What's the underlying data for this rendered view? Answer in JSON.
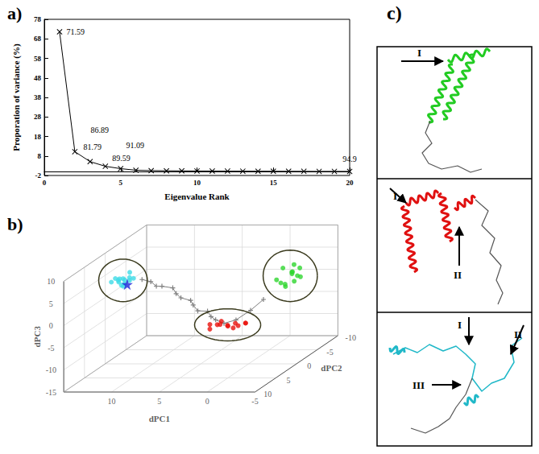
{
  "chart_data": [
    {
      "type": "line",
      "title": "a)",
      "xlabel": "Eigenvalue Rank",
      "ylabel": "Proporation of variance (%)",
      "x": [
        1,
        2,
        3,
        4,
        5,
        6,
        7,
        8,
        9,
        10,
        11,
        12,
        13,
        14,
        15,
        16,
        17,
        18,
        19,
        20
      ],
      "values": [
        71.59,
        10.2,
        5.1,
        2.7,
        1.5,
        0.7,
        0.5,
        0.4,
        0.35,
        0.3,
        0.25,
        0.22,
        0.2,
        0.18,
        0.16,
        0.14,
        0.12,
        0.1,
        0.1,
        0.09
      ],
      "annotations": [
        {
          "x": 1,
          "text": "71.59"
        },
        {
          "x": 2,
          "text": "81.79"
        },
        {
          "x": 3,
          "text": "86.89"
        },
        {
          "x": 4,
          "text": "89.59"
        },
        {
          "x": 5,
          "text": "91.09"
        },
        {
          "x": 20,
          "text": "94.9"
        }
      ],
      "color": "#000000",
      "marker": "x",
      "xlim": [
        0,
        20
      ],
      "xticks": [
        0,
        5,
        10,
        15,
        20
      ],
      "ylim": [
        -2,
        78
      ],
      "yticks": [
        -2,
        8,
        18,
        28,
        38,
        48,
        58,
        68,
        78
      ],
      "grid": false
    },
    {
      "type": "scatter3d",
      "title": "b)",
      "xlabel": "dPC1",
      "ylabel": "dPC2",
      "zlabel": "dPC3",
      "xlim": [
        -5,
        15
      ],
      "xticks": [
        -5,
        0,
        5,
        10
      ],
      "ylim": [
        -10,
        10
      ],
      "yticks": [
        -10,
        -5,
        0,
        5,
        10
      ],
      "zlim": [
        -15,
        10
      ],
      "zticks": [
        -15,
        -10,
        -5,
        0,
        5,
        10
      ],
      "grid": true,
      "series": [
        {
          "type": "line",
          "color": "#7f7f7f",
          "marker": "cross",
          "x": [
            10.5,
            9.8,
            9.0,
            8.2,
            7.5,
            6.8,
            6.0,
            5.2,
            4.5,
            3.8,
            3.0,
            2.2,
            1.5,
            0.5,
            -0.5,
            -1.5,
            -2.2
          ],
          "y": [
            1.5,
            1.0,
            1.5,
            2.0,
            1.0,
            1.8,
            2.5,
            2.0,
            3.0,
            3.5,
            3.0,
            4.0,
            4.5,
            4.8,
            4.2,
            3.0,
            1.5
          ],
          "z": [
            5.0,
            4.2,
            3.5,
            3.8,
            2.8,
            2.0,
            1.5,
            0.6,
            0.2,
            -0.8,
            -1.2,
            -1.8,
            -2.2,
            -2.8,
            -2.4,
            -1.0,
            0.5
          ]
        },
        {
          "type": "scatter",
          "color": "#3fdbe6",
          "marker": "circle",
          "x": [
            12.1,
            11.8,
            12.5,
            11.5,
            12.8,
            12.2,
            11.9,
            12.6,
            11.3,
            12.9,
            12.0,
            11.6,
            12.4,
            13.1
          ],
          "y": [
            2.0,
            1.5,
            2.6,
            2.2,
            1.8,
            3.0,
            2.8,
            1.2,
            1.7,
            2.4,
            1.0,
            3.2,
            2.1,
            2.9
          ],
          "z": [
            5.2,
            4.8,
            5.5,
            5.9,
            4.6,
            6.1,
            4.3,
            5.0,
            5.4,
            5.8,
            6.3,
            5.1,
            4.1,
            5.3
          ]
        },
        {
          "type": "scatter",
          "color": "#e8120c",
          "marker": "circle",
          "x": [
            1.8,
            1.2,
            0.6,
            0.0,
            -0.6,
            -1.2,
            -1.8,
            0.3,
            -0.9,
            1.5,
            -1.5,
            0.9
          ],
          "y": [
            5.2,
            4.8,
            5.5,
            5.0,
            4.6,
            5.3,
            4.9,
            4.4,
            5.8,
            5.9,
            4.2,
            4.5
          ],
          "z": [
            -2.8,
            -3.1,
            -2.6,
            -3.3,
            -2.9,
            -3.0,
            -2.7,
            -3.5,
            -3.2,
            -3.4,
            -3.1,
            -2.5
          ]
        },
        {
          "type": "scatter",
          "color": "#2fd62f",
          "marker": "circle",
          "x": [
            -2.5,
            -3.0,
            -3.5,
            -2.8,
            -3.2,
            -3.8,
            -2.2,
            -3.4,
            -2.6,
            -3.9,
            -3.1,
            -2.4,
            -3.6
          ],
          "y": [
            -2.0,
            -3.5,
            -2.5,
            -4.0,
            -1.5,
            -3.0,
            -3.2,
            -4.5,
            -2.8,
            -2.0,
            -3.8,
            -1.2,
            -4.2
          ],
          "z": [
            2.0,
            3.5,
            4.2,
            2.8,
            1.5,
            3.0,
            4.6,
            3.8,
            1.2,
            2.4,
            5.0,
            3.2,
            2.0
          ]
        },
        {
          "type": "scatter",
          "color": "#1a22d8",
          "marker": "star",
          "x": [
            11.7
          ],
          "y": [
            2.3
          ],
          "z": [
            4.4
          ]
        }
      ]
    }
  ],
  "structures": {
    "title": "c)",
    "panels": [
      {
        "color": "#22cc22",
        "labels": [
          "I"
        ]
      },
      {
        "color": "#e01010",
        "labels": [
          "I",
          "II"
        ]
      },
      {
        "color": "#20b8c8",
        "labels": [
          "I",
          "II",
          "III"
        ]
      }
    ]
  }
}
